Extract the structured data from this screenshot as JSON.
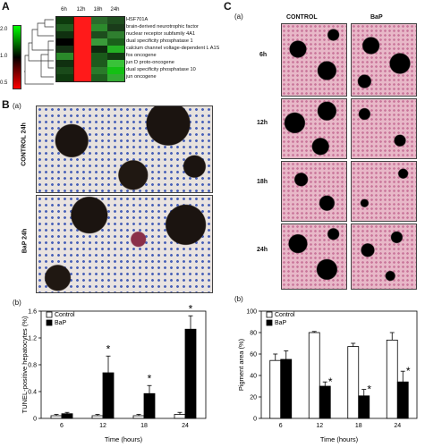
{
  "panelA": {
    "label": "A",
    "scale_ticks": [
      "2.0",
      "1.0",
      "0.5"
    ],
    "timepoints": [
      "6h",
      "12h",
      "18h",
      "24h"
    ],
    "genes": [
      "HSF701A",
      "brain-derived neurotrophic factor",
      "nuclear receptor subfamily 4A1",
      "dual specificity phosphatase 1",
      "calcium channel voltage-dependent L A1S",
      "fos oncogene",
      "jun D proto-oncogene",
      "dual specificity phosphatase 10",
      "jun oncogene"
    ],
    "heatmap_colors": [
      [
        "#0d3a0d",
        "#ff1a1a",
        "#2b6b2b",
        "#1f4f1f"
      ],
      [
        "#1f5a1f",
        "#ff1a1a",
        "#2c8a2c",
        "#1a3c1a"
      ],
      [
        "#103010",
        "#ff1a1a",
        "#1d4d1d",
        "#2f7f2f"
      ],
      [
        "#000000",
        "#ff1a1a",
        "#3a9a3a",
        "#1a601a"
      ],
      [
        "#143014",
        "#ff1a1a",
        "#0e2a0e",
        "#24b024"
      ],
      [
        "#2a8a2a",
        "#ff1a1a",
        "#1a5a1a",
        "#123a12"
      ],
      [
        "#103010",
        "#ff1a1a",
        "#1d5a1d",
        "#39c239"
      ],
      [
        "#1a4a1a",
        "#ff1a1a",
        "#2a7a2a",
        "#14c014"
      ],
      [
        "#0f3a0f",
        "#ff1a1a",
        "#1f5f1f",
        "#33aa33"
      ]
    ]
  },
  "panelB": {
    "label": "B",
    "sub_a": "(a)",
    "sub_b": "(b)",
    "img_control": "CONTROL 24h",
    "img_bap": "BaP 24h"
  },
  "panelC": {
    "label": "C",
    "sub_a": "(a)",
    "sub_b": "(b)",
    "col_control": "CONTROL",
    "col_bap": "BaP",
    "rows": [
      "6h",
      "12h",
      "18h",
      "24h"
    ]
  },
  "chart_data": [
    {
      "type": "bar",
      "ylabel": "TUNEL-positive hepatocytes (%)",
      "xlabel": "Time (hours)",
      "categories": [
        "6",
        "12",
        "18",
        "24"
      ],
      "ylim": [
        0,
        1.6
      ],
      "yticks": [
        "0",
        "0.4",
        "0.8",
        "1.2",
        "1.6"
      ],
      "series": [
        {
          "name": "Control",
          "values": [
            0.04,
            0.04,
            0.04,
            0.06
          ],
          "errors": [
            0.02,
            0.02,
            0.02,
            0.03
          ],
          "color": "#ffffff"
        },
        {
          "name": "BaP",
          "values": [
            0.07,
            0.68,
            0.37,
            1.33
          ],
          "errors": [
            0.02,
            0.25,
            0.12,
            0.2
          ],
          "color": "#000000"
        }
      ],
      "significance": [
        "",
        "*",
        "*",
        "*"
      ],
      "legend": "top-left"
    },
    {
      "type": "bar",
      "ylabel": "Pigment area (%)",
      "xlabel": "Time (hours)",
      "categories": [
        "6",
        "12",
        "18",
        "24"
      ],
      "ylim": [
        0,
        100
      ],
      "yticks": [
        "0",
        "20",
        "40",
        "60",
        "80",
        "100"
      ],
      "series": [
        {
          "name": "Control",
          "values": [
            54,
            80,
            67,
            73
          ],
          "errors": [
            6,
            1,
            3,
            7
          ],
          "color": "#ffffff"
        },
        {
          "name": "BaP",
          "values": [
            55,
            30,
            21,
            34
          ],
          "errors": [
            8,
            4,
            6,
            10
          ],
          "color": "#000000"
        }
      ],
      "significance": [
        "",
        "*",
        "*",
        "*"
      ],
      "legend": "top-left"
    }
  ]
}
